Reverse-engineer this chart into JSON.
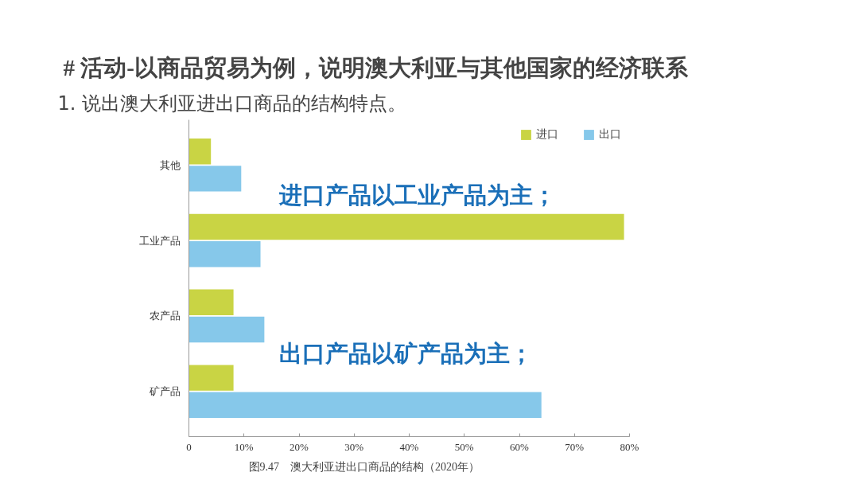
{
  "chart_data": {
    "type": "bar",
    "orientation": "horizontal",
    "title": "# 活动-以商品贸易为例，说明澳大利亚与其他国家的经济联系",
    "subtitle": "1. 说出澳大利亚进出口商品的结构特点。",
    "categories": [
      "其他",
      "工业产品",
      "农产品",
      "矿产品"
    ],
    "series": [
      {
        "name": "进口",
        "color": "#c9d444",
        "values": [
          4,
          79,
          8.1,
          8.1
        ]
      },
      {
        "name": "出口",
        "color": "#86c8ea",
        "values": [
          9.5,
          13,
          13.7,
          64
        ]
      }
    ],
    "xlim": [
      0,
      80
    ],
    "xticks": [
      {
        "value": 0,
        "label": "0"
      },
      {
        "value": 10,
        "label": "10%"
      },
      {
        "value": 20,
        "label": "20%"
      },
      {
        "value": 30,
        "label": "30%"
      },
      {
        "value": 40,
        "label": "40%"
      },
      {
        "value": 50,
        "label": "50%"
      },
      {
        "value": 60,
        "label": "60%"
      },
      {
        "value": 70,
        "label": "70%"
      },
      {
        "value": 80,
        "label": "80%"
      }
    ],
    "grid": false,
    "legend": "top right",
    "annotations": [
      "进口产品以工业产品为主；",
      "出口产品以矿产品为主；",
      "图9.47　澳大利亚进出口商品的结构（2020年）"
    ]
  }
}
